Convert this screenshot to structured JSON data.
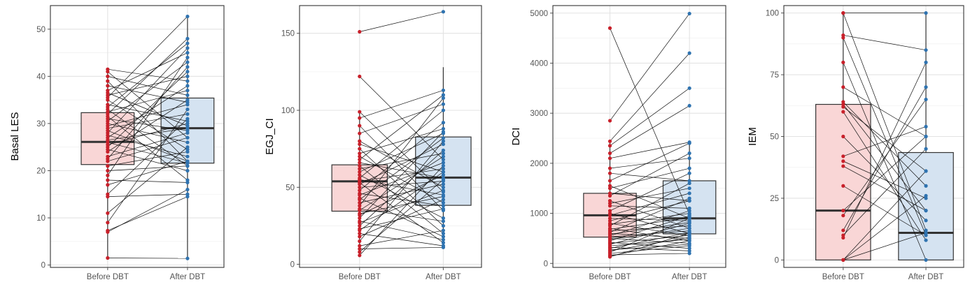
{
  "chart_data": [
    {
      "type": "box",
      "ylabel": "Basal LES",
      "xlabel": "",
      "categories": [
        "Before DBT",
        "After DBT"
      ],
      "ylim": [
        -0.5,
        55
      ],
      "yticks": [
        0,
        10,
        20,
        30,
        40,
        50
      ],
      "grid": true,
      "colors": {
        "before_fill": "#f9d6d6",
        "after_fill": "#d5e3f1",
        "before_point": "#c8202a",
        "after_point": "#2f73b0"
      },
      "boxes": [
        {
          "group": "Before DBT",
          "q1": 21.3,
          "median": 26.1,
          "q3": 32.3,
          "whisker_low": 1.5,
          "whisker_high": 41.5
        },
        {
          "group": "After DBT",
          "q1": 21.6,
          "median": 29.0,
          "q3": 35.4,
          "whisker_low": 1.4,
          "whisker_high": 52.7
        }
      ],
      "pairs": [
        [
          1.5,
          1.4
        ],
        [
          7,
          16
        ],
        [
          7.3,
          14.5
        ],
        [
          9,
          33
        ],
        [
          11,
          25
        ],
        [
          14.5,
          15
        ],
        [
          15,
          31
        ],
        [
          17,
          22
        ],
        [
          18,
          17.5
        ],
        [
          19,
          44
        ],
        [
          20,
          21
        ],
        [
          21,
          24
        ],
        [
          22,
          27
        ],
        [
          22.5,
          42
        ],
        [
          23,
          28
        ],
        [
          24,
          35
        ],
        [
          24.5,
          20
        ],
        [
          25,
          41
        ],
        [
          25.5,
          30
        ],
        [
          26,
          21.6
        ],
        [
          26.5,
          29
        ],
        [
          27,
          38
        ],
        [
          27.5,
          23
        ],
        [
          28,
          46
        ],
        [
          28.5,
          22
        ],
        [
          29,
          32
        ],
        [
          29.5,
          34
        ],
        [
          30,
          26
        ],
        [
          30.5,
          43
        ],
        [
          31,
          28.5
        ],
        [
          31.5,
          18
        ],
        [
          32,
          48
        ],
        [
          32.5,
          37
        ],
        [
          33,
          21
        ],
        [
          33.5,
          47
        ],
        [
          34,
          30.5
        ],
        [
          35,
          24.5
        ],
        [
          35.5,
          52.7
        ],
        [
          36,
          40
        ],
        [
          36.5,
          29.5
        ],
        [
          37,
          45
        ],
        [
          38,
          34.5
        ],
        [
          39,
          22
        ],
        [
          40,
          36
        ],
        [
          41,
          27
        ],
        [
          41.5,
          39
        ]
      ]
    },
    {
      "type": "box",
      "ylabel": "EGJ_CI",
      "xlabel": "",
      "categories": [
        "Before DBT",
        "After DBT"
      ],
      "ylim": [
        -2,
        168
      ],
      "yticks": [
        0,
        50,
        100,
        150
      ],
      "grid": true,
      "colors": {
        "before_fill": "#f9d6d6",
        "after_fill": "#d5e3f1",
        "before_point": "#c8202a",
        "after_point": "#2f73b0"
      },
      "boxes": [
        {
          "group": "Before DBT",
          "q1": 34.5,
          "median": 53.9,
          "q3": 64.6,
          "whisker_low": 5.8,
          "whisker_high": 99
        },
        {
          "group": "After DBT",
          "q1": 38.3,
          "median": 56.3,
          "q3": 82.7,
          "whisker_low": 10.5,
          "whisker_high": 128
        }
      ],
      "pairs": [
        [
          151,
          164
        ],
        [
          122,
          68
        ],
        [
          99,
          47
        ],
        [
          95,
          113
        ],
        [
          90,
          35
        ],
        [
          85,
          104
        ],
        [
          80,
          50
        ],
        [
          78,
          60
        ],
        [
          75,
          25
        ],
        [
          72,
          88
        ],
        [
          70,
          40
        ],
        [
          68,
          110
        ],
        [
          66,
          56
        ],
        [
          64,
          20
        ],
        [
          62,
          72
        ],
        [
          60,
          85
        ],
        [
          58,
          30
        ],
        [
          56,
          100
        ],
        [
          55,
          45
        ],
        [
          54,
          62
        ],
        [
          53,
          14
        ],
        [
          52,
          78
        ],
        [
          50,
          54
        ],
        [
          48,
          92
        ],
        [
          46,
          38
        ],
        [
          45,
          66
        ],
        [
          43,
          18
        ],
        [
          42,
          82
        ],
        [
          40,
          52
        ],
        [
          38,
          108
        ],
        [
          36,
          28
        ],
        [
          35,
          70
        ],
        [
          33,
          44
        ],
        [
          32,
          58
        ],
        [
          30,
          86
        ],
        [
          28,
          16
        ],
        [
          27,
          48
        ],
        [
          25,
          74
        ],
        [
          23,
          36
        ],
        [
          22,
          60
        ],
        [
          20,
          12
        ],
        [
          18,
          42
        ],
        [
          15,
          80
        ],
        [
          12,
          22
        ],
        [
          10,
          11
        ],
        [
          8,
          55
        ],
        [
          5.8,
          64
        ]
      ]
    },
    {
      "type": "box",
      "ylabel": "DCI",
      "xlabel": "",
      "categories": [
        "Before DBT",
        "After DBT"
      ],
      "ylim": [
        -80,
        5150
      ],
      "yticks": [
        0,
        1000,
        2000,
        3000,
        4000,
        5000
      ],
      "grid": true,
      "colors": {
        "before_fill": "#f9d6d6",
        "after_fill": "#d5e3f1",
        "before_point": "#c8202a",
        "after_point": "#2f73b0"
      },
      "boxes": [
        {
          "group": "Before DBT",
          "q1": 525,
          "median": 960,
          "q3": 1400,
          "whisker_low": 130,
          "whisker_high": 2440
        },
        {
          "group": "After DBT",
          "q1": 590,
          "median": 900,
          "q3": 1650,
          "whisker_low": 200,
          "whisker_high": 2420
        }
      ],
      "pairs": [
        [
          4700,
          980
        ],
        [
          2850,
          4990
        ],
        [
          2440,
          4200
        ],
        [
          2350,
          3500
        ],
        [
          2200,
          3150
        ],
        [
          2100,
          2420
        ],
        [
          1900,
          2100
        ],
        [
          1800,
          1650
        ],
        [
          1650,
          2400
        ],
        [
          1550,
          900
        ],
        [
          1500,
          1900
        ],
        [
          1400,
          1250
        ],
        [
          1350,
          2200
        ],
        [
          1250,
          700
        ],
        [
          1200,
          1500
        ],
        [
          1150,
          1100
        ],
        [
          1050,
          1800
        ],
        [
          1000,
          600
        ],
        [
          960,
          1400
        ],
        [
          900,
          850
        ],
        [
          850,
          1250
        ],
        [
          800,
          550
        ],
        [
          780,
          1000
        ],
        [
          750,
          1600
        ],
        [
          700,
          450
        ],
        [
          680,
          920
        ],
        [
          650,
          750
        ],
        [
          620,
          1300
        ],
        [
          600,
          500
        ],
        [
          580,
          820
        ],
        [
          550,
          1050
        ],
        [
          530,
          650
        ],
        [
          500,
          400
        ],
        [
          480,
          700
        ],
        [
          450,
          950
        ],
        [
          420,
          300
        ],
        [
          400,
          560
        ],
        [
          380,
          800
        ],
        [
          350,
          480
        ],
        [
          320,
          250
        ],
        [
          300,
          620
        ],
        [
          270,
          380
        ],
        [
          250,
          520
        ],
        [
          220,
          900
        ],
        [
          200,
          350
        ],
        [
          170,
          200
        ],
        [
          150,
          450
        ],
        [
          130,
          600
        ]
      ]
    },
    {
      "type": "box",
      "ylabel": "IEM",
      "xlabel": "",
      "categories": [
        "Before DBT",
        "After DBT"
      ],
      "ylim": [
        -3,
        103
      ],
      "yticks": [
        0,
        25,
        50,
        75,
        100
      ],
      "grid": true,
      "colors": {
        "before_fill": "#f9d6d6",
        "after_fill": "#d5e3f1",
        "before_point": "#c8202a",
        "after_point": "#2f73b0"
      },
      "boxes": [
        {
          "group": "Before DBT",
          "q1": 0,
          "median": 20,
          "q3": 63,
          "whisker_low": 0,
          "whisker_high": 100
        },
        {
          "group": "After DBT",
          "q1": 0,
          "median": 11,
          "q3": 43.5,
          "whisker_low": 0,
          "whisker_high": 100
        }
      ],
      "pairs": [
        [
          100,
          100
        ],
        [
          100,
          12
        ],
        [
          91,
          85
        ],
        [
          90,
          10
        ],
        [
          80,
          0
        ],
        [
          70,
          50
        ],
        [
          64,
          30
        ],
        [
          63,
          20
        ],
        [
          62,
          36
        ],
        [
          60,
          8
        ],
        [
          50,
          16
        ],
        [
          42,
          54
        ],
        [
          40,
          25
        ],
        [
          38,
          20
        ],
        [
          30,
          10
        ],
        [
          20,
          50
        ],
        [
          18,
          65
        ],
        [
          12,
          70
        ],
        [
          10,
          45
        ],
        [
          9,
          80
        ],
        [
          0,
          11
        ],
        [
          0,
          26
        ],
        [
          0,
          36
        ]
      ]
    }
  ]
}
